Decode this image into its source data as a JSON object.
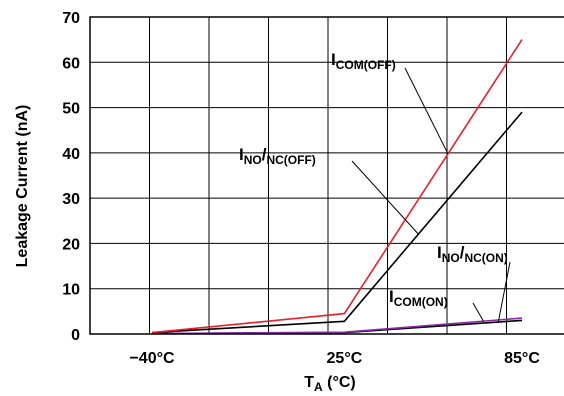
{
  "chart_data": {
    "type": "line",
    "title": "",
    "xlabel": {
      "main": "T",
      "sub": "A",
      "rest": " (°C)"
    },
    "ylabel": "Leakage Current (nA)",
    "x": [
      -40,
      25,
      85
    ],
    "x_tick_labels": [
      "−40°C",
      "25°C",
      "85°C"
    ],
    "ylim": [
      0,
      70
    ],
    "y_ticks": [
      0,
      10,
      20,
      30,
      40,
      50,
      60,
      70
    ],
    "grid": true,
    "legend": "none",
    "series": [
      {
        "name": "I_COM(OFF)",
        "color": "#e8202a",
        "values": [
          0.3,
          4.5,
          65
        ]
      },
      {
        "name": "I_NO/NC(OFF)",
        "color": "#000000",
        "values": [
          0.3,
          2.8,
          49
        ]
      },
      {
        "name": "I_NO/NC(ON)",
        "color": "#000000",
        "values": [
          0.1,
          0.3,
          3.0
        ]
      },
      {
        "name": "I_COM(ON)",
        "color": "#8a2aa8",
        "values": [
          0.1,
          0.4,
          3.5
        ]
      }
    ],
    "annotations": [
      {
        "main": "I",
        "sub": "COM(OFF)",
        "series": 0
      },
      {
        "main": "I",
        "sub": "NO",
        "slash": "/",
        "sub2": "NC(OFF)",
        "series": 1
      },
      {
        "main": "I",
        "sub": "NO",
        "slash": "/",
        "sub2": "NC(ON)",
        "series": 2
      },
      {
        "main": "I",
        "sub": "COM(ON)",
        "series": 3
      }
    ]
  }
}
